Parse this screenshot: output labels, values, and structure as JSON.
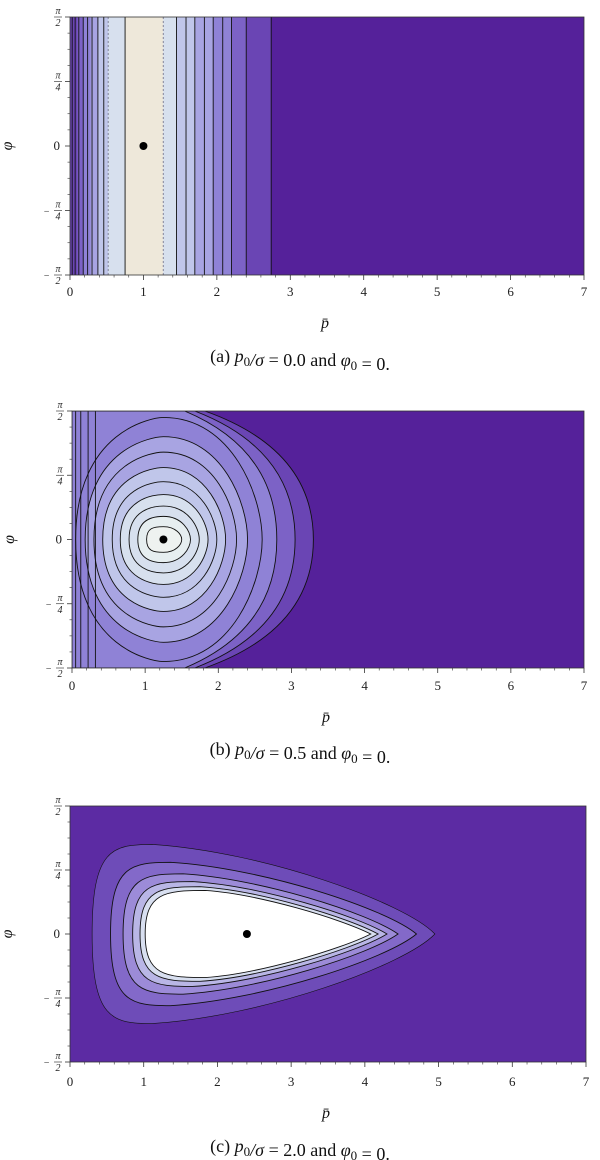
{
  "chart_data": [
    {
      "type": "contour",
      "panel_label": "(a)",
      "caption_parts": [
        "(a)",
        "p",
        "0",
        "/",
        "σ",
        " = 0.0 and ",
        "φ",
        "0",
        " = 0."
      ],
      "params": {
        "p0_over_sigma": 0.0,
        "phi0": 0
      },
      "xlabel": "p̄",
      "ylabel": "φ",
      "xlim": [
        0,
        7
      ],
      "ylim": [
        "-π/2",
        "π/2"
      ],
      "xticks": [
        "0",
        "1",
        "2",
        "3",
        "4",
        "5",
        "6",
        "7"
      ],
      "yticks": [
        "π/2",
        "π/4",
        "0",
        "-π/4",
        "-π/2"
      ],
      "marker": {
        "x": 1.0,
        "y": 0
      },
      "contour_pattern": "vertical bands (independent of φ)",
      "colors": {
        "background": "#55219a",
        "peak": "#efe6d6"
      }
    },
    {
      "type": "contour",
      "panel_label": "(b)",
      "caption_parts": [
        "(b)",
        "p",
        "0",
        "/",
        "σ",
        " = 0.5 and ",
        "φ",
        "0",
        " = 0."
      ],
      "params": {
        "p0_over_sigma": 0.5,
        "phi0": 0
      },
      "xlabel": "p̄",
      "ylabel": "φ",
      "xlim": [
        0,
        7
      ],
      "ylim": [
        "-π/2",
        "π/2"
      ],
      "xticks": [
        "0",
        "1",
        "2",
        "3",
        "4",
        "5",
        "6",
        "7"
      ],
      "yticks": [
        "π/2",
        "π/4",
        "0",
        "-π/4",
        "-π/2"
      ],
      "marker": {
        "x": 1.25,
        "y": 0
      },
      "contour_pattern": "nested loops around a peak near p̄≈1.25, φ=0",
      "colors": {
        "background": "#55219a",
        "peak": "#e8eef2"
      }
    },
    {
      "type": "contour",
      "panel_label": "(c)",
      "caption_parts": [
        "(c)",
        "p",
        "0",
        "/",
        "σ",
        " = 2.0 and ",
        "φ",
        "0",
        " = 0."
      ],
      "params": {
        "p0_over_sigma": 2.0,
        "phi0": 0
      },
      "xlabel": "p̄",
      "ylabel": "φ",
      "xlim": [
        0,
        7
      ],
      "ylim": [
        "-π/2",
        "π/2"
      ],
      "xticks": [
        "0",
        "1",
        "2",
        "3",
        "4",
        "5",
        "6",
        "7"
      ],
      "yticks": [
        "π/2",
        "π/4",
        "0",
        "-π/4",
        "-π/2"
      ],
      "marker": {
        "x": 2.4,
        "y": 0
      },
      "contour_pattern": "teardrop-shaped nested loops, white core around p̄≈2.4",
      "colors": {
        "background": "#5c2ba3",
        "peak": "#ffffff"
      }
    }
  ]
}
